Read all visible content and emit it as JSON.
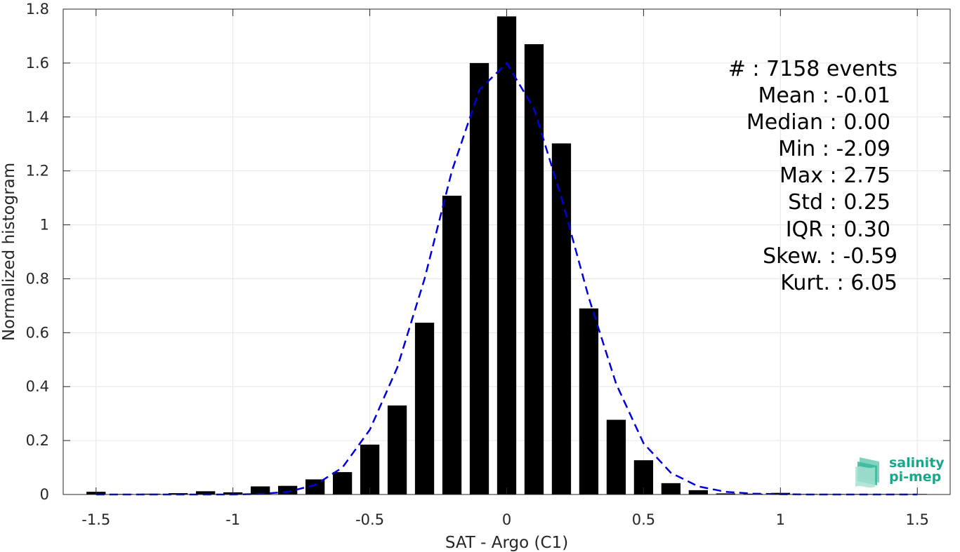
{
  "chart_data": {
    "type": "bar",
    "xlabel": "SAT - Argo (C1)",
    "ylabel": "Normalized histogram",
    "xlim": [
      -1.62,
      1.62
    ],
    "ylim": [
      0,
      1.8
    ],
    "x_ticks": [
      -1.5,
      -1,
      -0.5,
      0,
      0.5,
      1,
      1.5
    ],
    "x_tick_labels": [
      "-1.5",
      "-1",
      "-0.5",
      "0",
      "0.5",
      "1",
      "1.5"
    ],
    "y_ticks": [
      0,
      0.2,
      0.4,
      0.6,
      0.8,
      1,
      1.2,
      1.4,
      1.6,
      1.8
    ],
    "y_tick_labels": [
      "0",
      "0.2",
      "0.4",
      "0.6",
      "0.8",
      "1",
      "1.2",
      "1.4",
      "1.6",
      "1.8"
    ],
    "grid": true,
    "bar_color": "#000000",
    "bar_width": 0.07,
    "bars": {
      "x": [
        -1.5,
        -1.4,
        -1.3,
        -1.2,
        -1.1,
        -1.0,
        -0.9,
        -0.8,
        -0.7,
        -0.6,
        -0.5,
        -0.4,
        -0.3,
        -0.2,
        -0.1,
        0.0,
        0.1,
        0.2,
        0.3,
        0.4,
        0.5,
        0.6,
        0.7,
        0.8,
        0.9,
        1.0,
        1.1,
        1.2,
        1.3,
        1.4,
        1.5
      ],
      "values": [
        0.01,
        0.002,
        0.003,
        0.005,
        0.012,
        0.008,
        0.03,
        0.032,
        0.056,
        0.083,
        0.185,
        0.33,
        0.637,
        1.108,
        1.6,
        1.773,
        1.67,
        1.302,
        0.69,
        0.277,
        0.127,
        0.042,
        0.016,
        0.004,
        0.003,
        0.006,
        0.002,
        0.002,
        0.002,
        0.002,
        0.002
      ]
    },
    "series": [
      {
        "type": "line",
        "style": "dashed",
        "color": "#0000dd",
        "x": [
          -1.5,
          -1.4,
          -1.3,
          -1.2,
          -1.1,
          -1.0,
          -0.9,
          -0.8,
          -0.7,
          -0.6,
          -0.5,
          -0.4,
          -0.3,
          -0.2,
          -0.1,
          0.0,
          0.1,
          0.2,
          0.3,
          0.4,
          0.5,
          0.6,
          0.7,
          0.8,
          0.9,
          1.0,
          1.1,
          1.2,
          1.3,
          1.4,
          1.5
        ],
        "values": [
          0.0,
          0.0,
          0.0,
          0.0,
          0.0,
          0.0,
          0.002,
          0.01,
          0.035,
          0.1,
          0.24,
          0.47,
          0.8,
          1.2,
          1.5,
          1.6,
          1.43,
          1.1,
          0.73,
          0.41,
          0.19,
          0.08,
          0.03,
          0.01,
          0.003,
          0.001,
          0.0,
          0.0,
          0.0,
          0.0,
          0.0
        ]
      }
    ]
  },
  "stats": [
    "#  : 7158 events",
    "Mean : -0.01",
    "Median : 0.00",
    "Min : -2.09",
    "Max : 2.75",
    "Std : 0.25",
    "IQR : 0.30",
    "Skew. : -0.59",
    "Kurt. : 6.05"
  ],
  "logo": {
    "line1": "salinity",
    "line2": "pi-mep",
    "color": "#1aa68a"
  }
}
